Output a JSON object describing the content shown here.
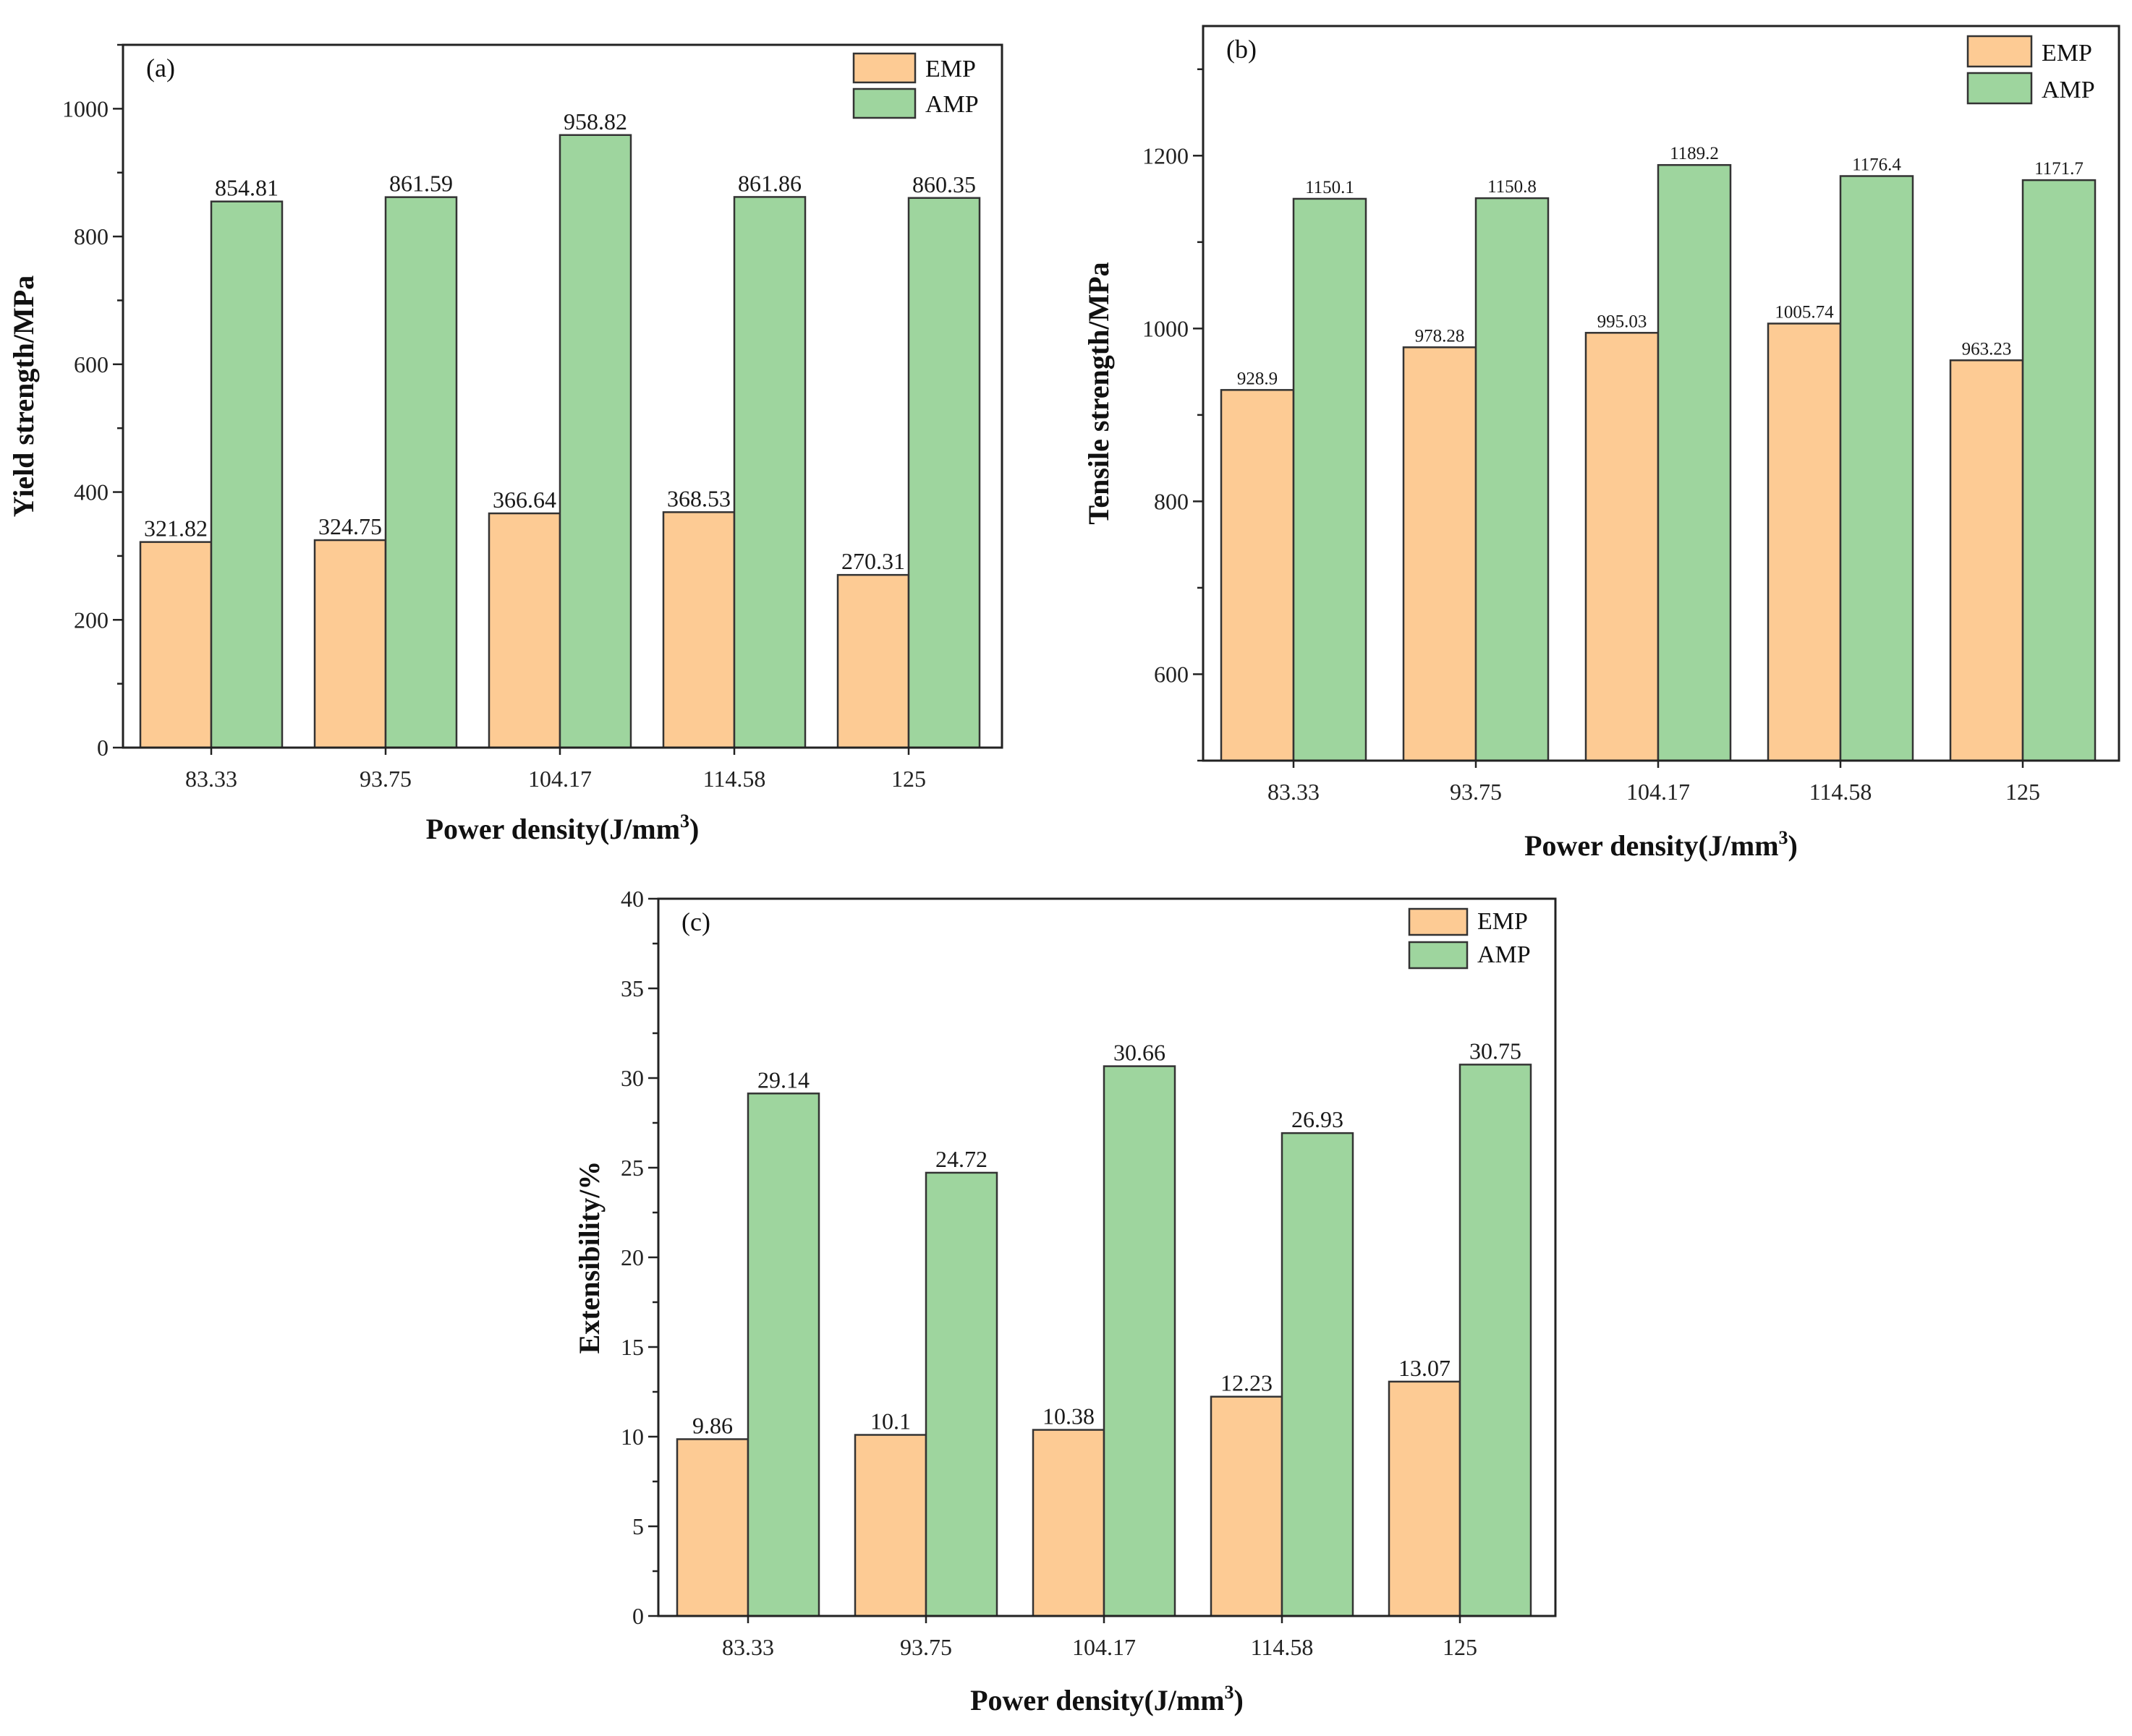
{
  "chart_data": [
    {
      "type": "bar",
      "panel": "(a)",
      "title": "",
      "xlabel": "Power density(J/mm",
      "xlabel_sup": "3",
      "xlabel_close": ")",
      "ylabel": "Yield strength/MPa",
      "categories": [
        "83.33",
        "93.75",
        "104.17",
        "114.58",
        "125"
      ],
      "series": [
        {
          "name": "EMP",
          "color": "#fdcb94",
          "values": [
            321.82,
            324.75,
            366.64,
            368.53,
            270.31
          ],
          "labels": [
            "321.82",
            "324.75",
            "366.64",
            "368.53",
            "270.31"
          ]
        },
        {
          "name": "AMP",
          "color": "#9ed59e",
          "values": [
            854.81,
            861.59,
            958.82,
            861.86,
            860.35
          ],
          "labels": [
            "854.81",
            "861.59",
            "958.82",
            "861.86",
            "860.35"
          ]
        }
      ],
      "ylim": [
        0,
        1100
      ],
      "yticks": [
        0,
        200,
        400,
        600,
        800,
        1000
      ],
      "legend": "top-right",
      "grid": false
    },
    {
      "type": "bar",
      "panel": "(b)",
      "title": "",
      "xlabel": "Power density(J/mm",
      "xlabel_sup": "3",
      "xlabel_close": ")",
      "ylabel": "Tensile strength/MPa",
      "categories": [
        "83.33",
        "93.75",
        "104.17",
        "114.58",
        "125"
      ],
      "series": [
        {
          "name": "EMP",
          "color": "#fdcb94",
          "values": [
            928.9,
            978.28,
            995.03,
            1005.74,
            963.23
          ],
          "labels": [
            "928.9",
            "978.28",
            "995.03",
            "1005.74",
            "963.23"
          ]
        },
        {
          "name": "AMP",
          "color": "#9ed59e",
          "values": [
            1150.1,
            1150.8,
            1189.2,
            1176.4,
            1171.7
          ],
          "labels": [
            "1150.1",
            "1150.8",
            "1189.2",
            "1176.4",
            "1171.7"
          ]
        }
      ],
      "ylim": [
        500,
        1350
      ],
      "yticks": [
        600,
        800,
        1000,
        1200
      ],
      "legend": "top-right",
      "grid": false
    },
    {
      "type": "bar",
      "panel": "(c)",
      "title": "",
      "xlabel": "Power density(J/mm",
      "xlabel_sup": "3",
      "xlabel_close": ")",
      "ylabel": "Extensibility/%",
      "categories": [
        "83.33",
        "93.75",
        "104.17",
        "114.58",
        "125"
      ],
      "series": [
        {
          "name": "EMP",
          "color": "#fdcb94",
          "values": [
            9.86,
            10.1,
            10.38,
            12.23,
            13.07
          ],
          "labels": [
            "9.86",
            "10.1",
            "10.38",
            "12.23",
            "13.07"
          ]
        },
        {
          "name": "AMP",
          "color": "#9ed59e",
          "values": [
            29.14,
            24.72,
            30.66,
            26.93,
            30.75
          ],
          "labels": [
            "29.14",
            "24.72",
            "30.66",
            "26.93",
            "30.75"
          ]
        }
      ],
      "ylim": [
        0,
        40
      ],
      "yticks": [
        0,
        5,
        10,
        15,
        20,
        25,
        30,
        35,
        40
      ],
      "legend": "top-right",
      "grid": false
    }
  ]
}
